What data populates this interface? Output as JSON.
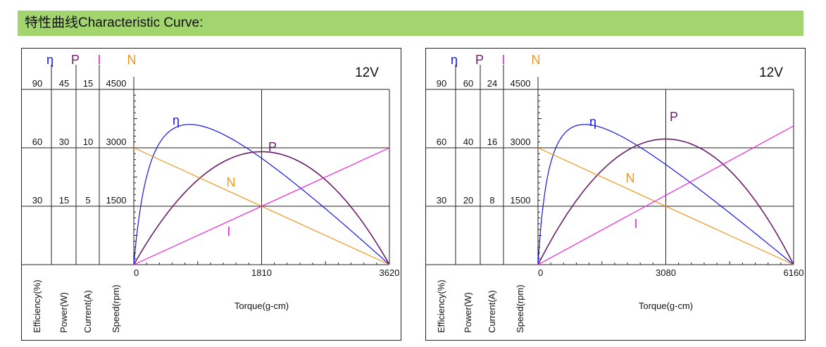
{
  "header": {
    "title": "特性曲线Characteristic Curve:"
  },
  "colors": {
    "banner": "#a3d56f",
    "efficiency": "#1515e6",
    "power": "#6a1d6a",
    "current": "#f020e0",
    "speed": "#f0961e"
  },
  "axis_symbols": {
    "efficiency": "η",
    "power": "P",
    "current": "I",
    "speed": "N"
  },
  "axis_names": {
    "efficiency": "Efficiency(%)",
    "power": "Power(W)",
    "current": "Current(A)",
    "speed": "Speed(rpm)"
  },
  "chart_data": [
    {
      "type": "line",
      "voltage_label": "12V",
      "xlabel": "Torque(g-cm)",
      "xlim": [
        0,
        3620
      ],
      "x_ticks": [
        "0",
        "1810",
        "3620"
      ],
      "y_scales": {
        "efficiency": {
          "ticks": [
            "90",
            "60",
            "30"
          ],
          "max": 90
        },
        "power": {
          "ticks": [
            "45",
            "30",
            "15"
          ],
          "max": 45
        },
        "current": {
          "ticks": [
            "15",
            "10",
            "5"
          ],
          "max": 15
        },
        "speed": {
          "ticks": [
            "4500",
            "3000",
            "1500"
          ],
          "max": 4500
        }
      },
      "series": [
        {
          "name": "η",
          "axis": "efficiency",
          "peak_x": 790,
          "peak_y": 72
        },
        {
          "name": "P",
          "axis": "power",
          "x": [
            0,
            1810,
            3620
          ],
          "y": [
            0,
            29,
            0
          ]
        },
        {
          "name": "N",
          "axis": "speed",
          "x": [
            0,
            3620
          ],
          "y": [
            3000,
            0
          ]
        },
        {
          "name": "I",
          "axis": "current",
          "x": [
            0,
            3620
          ],
          "y": [
            0,
            10
          ]
        }
      ]
    },
    {
      "type": "line",
      "voltage_label": "12V",
      "xlabel": "Torque(g-cm)",
      "xlim": [
        0,
        6160
      ],
      "x_ticks": [
        "0",
        "3080",
        "6160"
      ],
      "y_scales": {
        "efficiency": {
          "ticks": [
            "90",
            "60",
            "30"
          ],
          "max": 90
        },
        "power": {
          "ticks": [
            "60",
            "40",
            "20"
          ],
          "max": 60
        },
        "current": {
          "ticks": [
            "24",
            "16",
            "8"
          ],
          "max": 24
        },
        "speed": {
          "ticks": [
            "4500",
            "3000",
            "1500"
          ],
          "max": 4500
        }
      },
      "series": [
        {
          "name": "η",
          "axis": "efficiency",
          "peak_x": 1130,
          "peak_y": 72
        },
        {
          "name": "P",
          "axis": "power",
          "x": [
            0,
            3080,
            6160
          ],
          "y": [
            0,
            43,
            0
          ]
        },
        {
          "name": "N",
          "axis": "speed",
          "x": [
            0,
            6160
          ],
          "y": [
            3000,
            0
          ]
        },
        {
          "name": "I",
          "axis": "current",
          "x": [
            0,
            6160
          ],
          "y": [
            0,
            19
          ]
        }
      ]
    }
  ]
}
